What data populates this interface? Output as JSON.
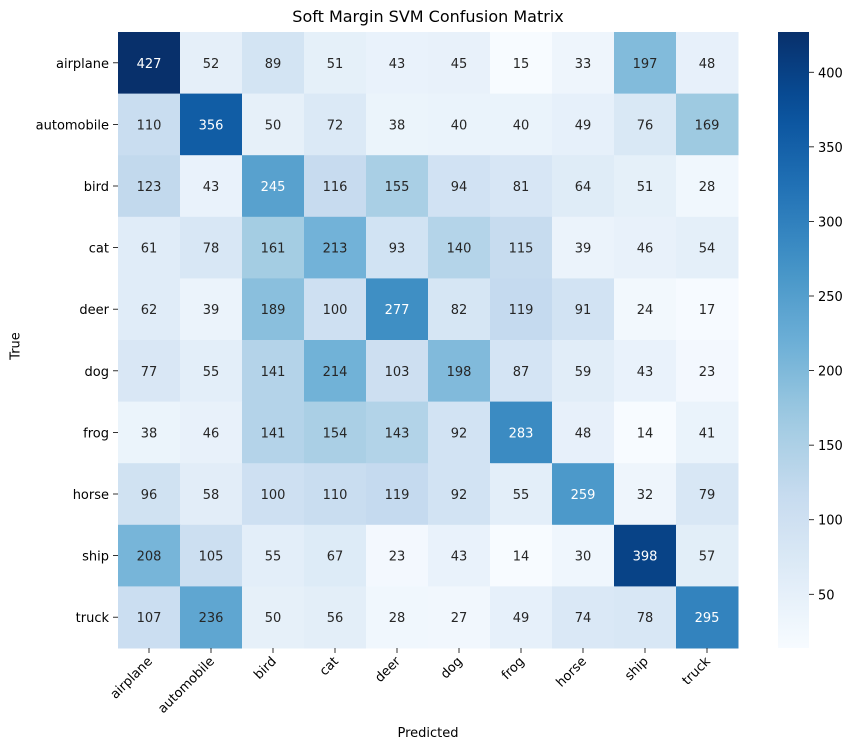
{
  "chart_data": {
    "type": "heatmap",
    "title": "Soft Margin SVM Confusion Matrix",
    "xlabel": "Predicted",
    "ylabel": "True",
    "x_categories": [
      "airplane",
      "automobile",
      "bird",
      "cat",
      "deer",
      "dog",
      "frog",
      "horse",
      "ship",
      "truck"
    ],
    "y_categories": [
      "airplane",
      "automobile",
      "bird",
      "cat",
      "deer",
      "dog",
      "frog",
      "horse",
      "ship",
      "truck"
    ],
    "values": [
      [
        427,
        52,
        89,
        51,
        43,
        45,
        15,
        33,
        197,
        48
      ],
      [
        110,
        356,
        50,
        72,
        38,
        40,
        40,
        49,
        76,
        169
      ],
      [
        123,
        43,
        245,
        116,
        155,
        94,
        81,
        64,
        51,
        28
      ],
      [
        61,
        78,
        161,
        213,
        93,
        140,
        115,
        39,
        46,
        54
      ],
      [
        62,
        39,
        189,
        100,
        277,
        82,
        119,
        91,
        24,
        17
      ],
      [
        77,
        55,
        141,
        214,
        103,
        198,
        87,
        59,
        43,
        23
      ],
      [
        38,
        46,
        141,
        154,
        143,
        92,
        283,
        48,
        14,
        41
      ],
      [
        96,
        58,
        100,
        110,
        119,
        92,
        55,
        259,
        32,
        79
      ],
      [
        208,
        105,
        55,
        67,
        23,
        43,
        14,
        30,
        398,
        57
      ],
      [
        107,
        236,
        50,
        56,
        28,
        27,
        49,
        74,
        78,
        295
      ]
    ],
    "colormap": "Blues",
    "vmin": 14,
    "vmax": 427,
    "colorbar_ticks": [
      50,
      100,
      150,
      200,
      250,
      300,
      350,
      400
    ],
    "annotations": true,
    "grid": false,
    "x_tick_rotation": 45
  }
}
